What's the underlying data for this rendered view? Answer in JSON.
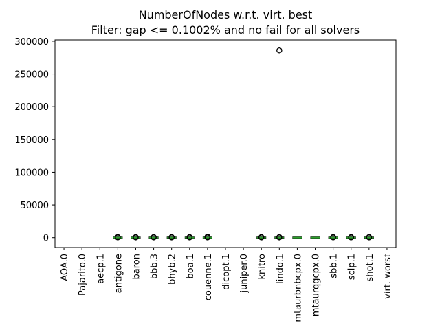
{
  "chart_data": {
    "type": "box",
    "title": "NumberOfNodes w.r.t. virt. best",
    "subtitle": "Filter: gap <= 0.1002% and no fail for all solvers",
    "xlabel": "",
    "ylabel": "",
    "ylim": [
      -15000,
      302000
    ],
    "yticks": [
      0,
      50000,
      100000,
      150000,
      200000,
      250000,
      300000
    ],
    "ytick_labels": [
      "0",
      "50000",
      "100000",
      "150000",
      "200000",
      "250000",
      "300000"
    ],
    "categories": [
      "AOA.0",
      "Pajarito.0",
      "aecp.1",
      "antigone",
      "baron",
      "bbb.3",
      "bhyb.2",
      "boa.1",
      "couenne.1",
      "dicopt.1",
      "juniper.0",
      "knitro",
      "lindo.1",
      "mtaurbnbcpx.0",
      "mtaurqgcpx.0",
      "sbb.1",
      "scip.1",
      "shot.1",
      "virt. worst"
    ],
    "boxes": [
      {
        "category": "AOA.0",
        "has_data": false,
        "median": null,
        "q1": null,
        "q3": null,
        "outliers": []
      },
      {
        "category": "Pajarito.0",
        "has_data": false,
        "median": null,
        "q1": null,
        "q3": null,
        "outliers": []
      },
      {
        "category": "aecp.1",
        "has_data": false,
        "median": null,
        "q1": null,
        "q3": null,
        "outliers": []
      },
      {
        "category": "antigone",
        "has_data": true,
        "median": 0,
        "q1": 0,
        "q3": 0,
        "outliers": [
          300,
          900
        ]
      },
      {
        "category": "baron",
        "has_data": true,
        "median": 0,
        "q1": 0,
        "q3": 0,
        "outliers": [
          300,
          900
        ]
      },
      {
        "category": "bbb.3",
        "has_data": true,
        "median": 0,
        "q1": 0,
        "q3": 0,
        "outliers": [
          300,
          900
        ]
      },
      {
        "category": "bhyb.2",
        "has_data": true,
        "median": 0,
        "q1": 0,
        "q3": 0,
        "outliers": [
          300,
          900
        ]
      },
      {
        "category": "boa.1",
        "has_data": true,
        "median": 0,
        "q1": 0,
        "q3": 0,
        "outliers": [
          300,
          900
        ]
      },
      {
        "category": "couenne.1",
        "has_data": true,
        "median": 0,
        "q1": 0,
        "q3": 0,
        "outliers": [
          300,
          900,
          1500
        ]
      },
      {
        "category": "dicopt.1",
        "has_data": false,
        "median": null,
        "q1": null,
        "q3": null,
        "outliers": []
      },
      {
        "category": "juniper.0",
        "has_data": false,
        "median": null,
        "q1": null,
        "q3": null,
        "outliers": []
      },
      {
        "category": "knitro",
        "has_data": true,
        "median": 0,
        "q1": 0,
        "q3": 0,
        "outliers": [
          300,
          900
        ]
      },
      {
        "category": "lindo.1",
        "has_data": true,
        "median": 0,
        "q1": 0,
        "q3": 0,
        "outliers": [
          300,
          900,
          286000
        ]
      },
      {
        "category": "mtaurbnbcpx.0",
        "has_data": true,
        "median": 0,
        "q1": 0,
        "q3": 0,
        "outliers": []
      },
      {
        "category": "mtaurqgcpx.0",
        "has_data": true,
        "median": 0,
        "q1": 0,
        "q3": 0,
        "outliers": []
      },
      {
        "category": "sbb.1",
        "has_data": true,
        "median": 0,
        "q1": 0,
        "q3": 0,
        "outliers": [
          300,
          900
        ]
      },
      {
        "category": "scip.1",
        "has_data": true,
        "median": 0,
        "q1": 0,
        "q3": 0,
        "outliers": [
          300,
          900
        ]
      },
      {
        "category": "shot.1",
        "has_data": true,
        "median": 0,
        "q1": 0,
        "q3": 0,
        "outliers": [
          300,
          900
        ]
      },
      {
        "category": "virt. worst",
        "has_data": false,
        "median": null,
        "q1": null,
        "q3": null,
        "outliers": []
      }
    ],
    "colors": {
      "box": "#000000",
      "median": "#2ca02c",
      "outlier": "#000000",
      "axis": "#000000",
      "background": "#ffffff"
    },
    "grid": false,
    "legend": "none"
  }
}
